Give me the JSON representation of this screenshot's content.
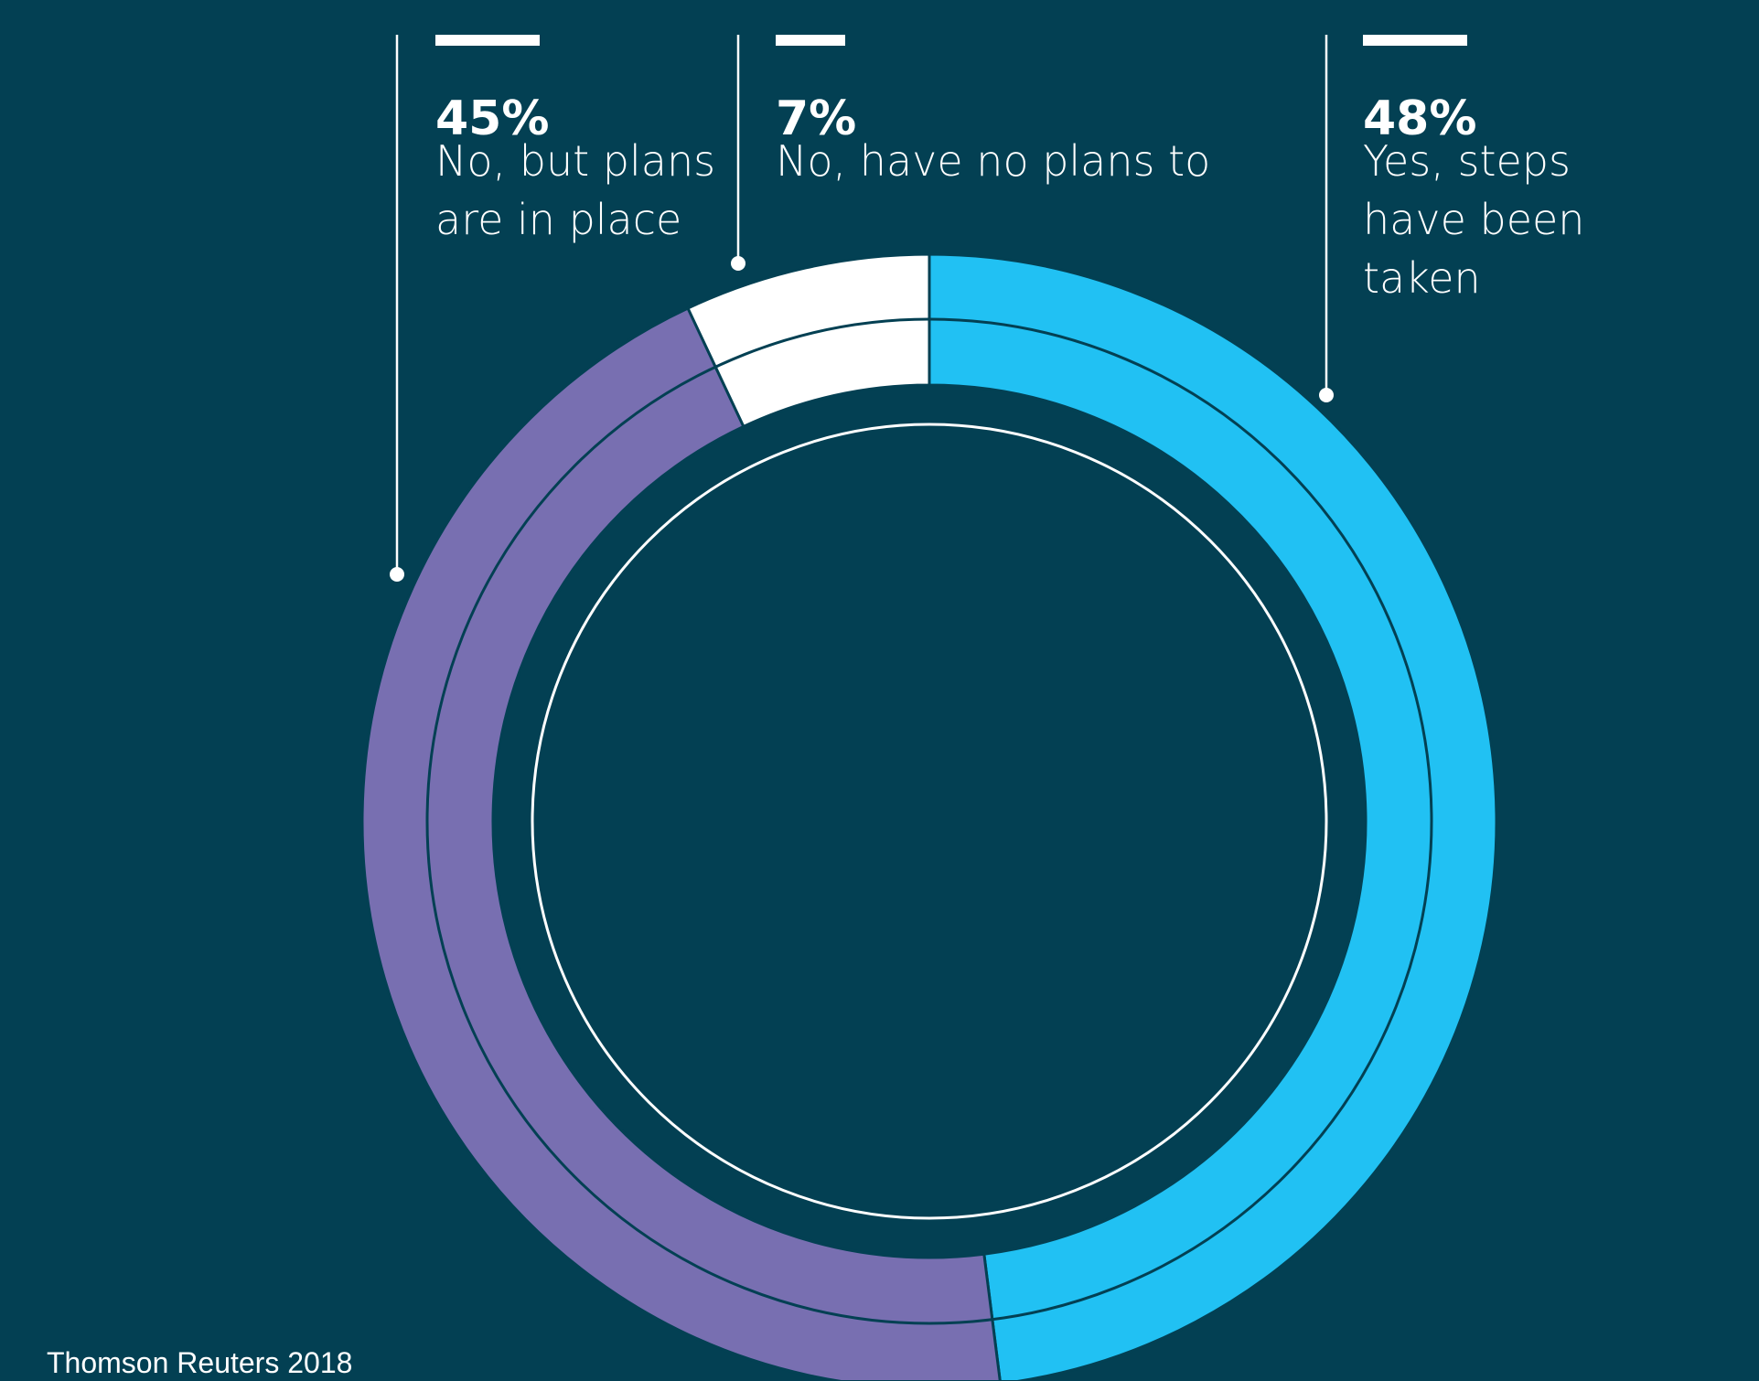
{
  "chart_data": {
    "type": "pie",
    "title": "",
    "slices": [
      {
        "label": "No, but plans are in place",
        "value": 45,
        "value_label": "45%",
        "color": "#786FB1"
      },
      {
        "label": "No, have no plans to",
        "value": 7,
        "value_label": "7%",
        "color": "#FFFFFF"
      },
      {
        "label": "Yes, steps have been taken",
        "value": 48,
        "value_label": "48%",
        "color": "#21C1F3"
      }
    ]
  },
  "source": "Thomson Reuters 2018",
  "colors": {
    "background": "#034053",
    "leader_line": "#FFFFFF"
  }
}
